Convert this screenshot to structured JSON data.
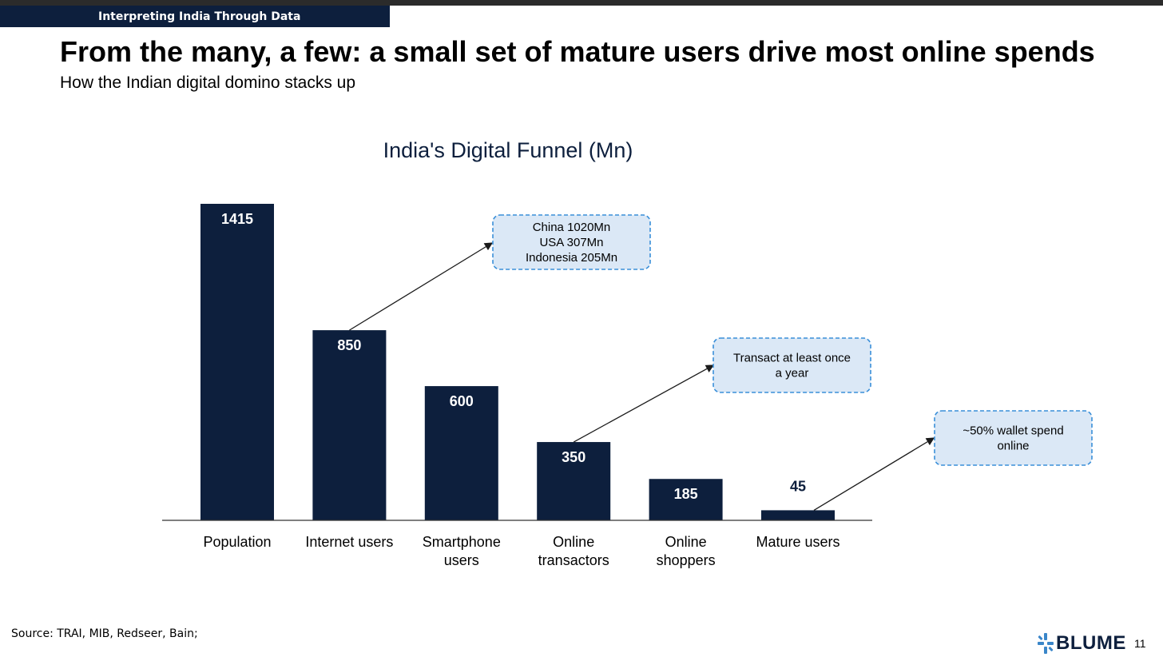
{
  "header": {
    "band_label": "Interpreting India Through Data"
  },
  "slide": {
    "title": "From the many, a few: a small set of mature users drive most online spends",
    "subtitle": "How the Indian digital domino stacks up",
    "source": "Source: TRAI, MIB, Redseer, Bain;",
    "logo_text": "BLUME",
    "page_number": "11"
  },
  "chart_data": {
    "type": "bar",
    "title": "India's Digital Funnel (Mn)",
    "categories": [
      [
        "Population"
      ],
      [
        "Internet users"
      ],
      [
        "Smartphone",
        "users"
      ],
      [
        "Online",
        "transactors"
      ],
      [
        "Online",
        "shoppers"
      ],
      [
        "Mature users"
      ]
    ],
    "values": [
      1415,
      850,
      600,
      350,
      185,
      45
    ],
    "ylim": [
      0,
      1415
    ],
    "grid": false,
    "bar_color": "#0d1f3d",
    "annotations": [
      {
        "from_bar": 1,
        "lines": [
          "China 1020Mn",
          "USA 307Mn",
          "Indonesia 205Mn"
        ]
      },
      {
        "from_bar": 3,
        "lines": [
          "Transact at least once",
          "a year"
        ]
      },
      {
        "from_bar": 5,
        "lines": [
          "~50% wallet spend",
          "online"
        ]
      }
    ],
    "callout_fill": "#dbe8f6",
    "callout_border": "#3a8fd9"
  }
}
